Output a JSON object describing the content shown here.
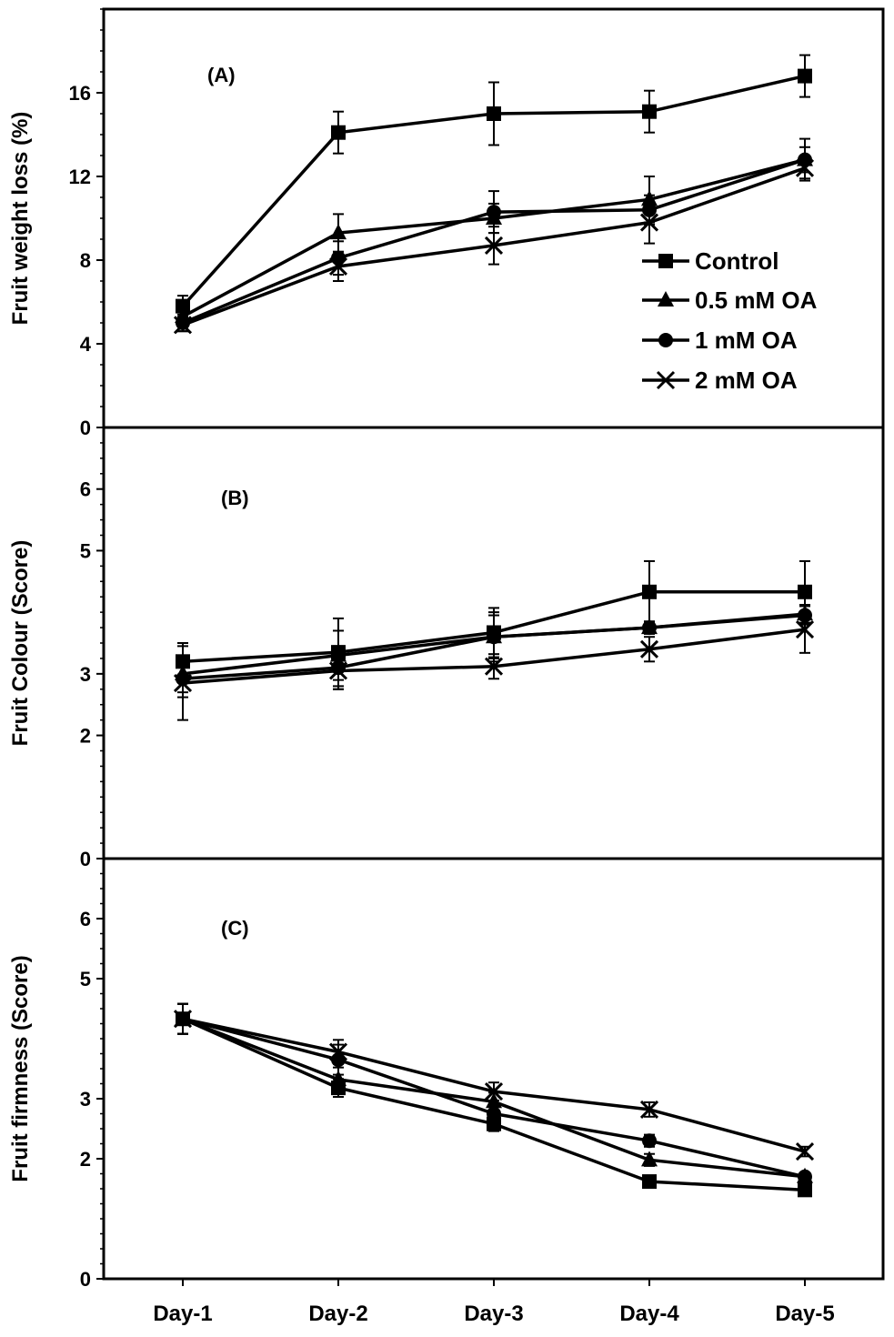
{
  "chart_data": [
    {
      "type": "line",
      "panel_label": "(A)",
      "ylabel": "Fruit weight loss (%)",
      "ylim": [
        0,
        20
      ],
      "yticks": [
        0,
        4,
        8,
        12,
        16
      ],
      "categories": [
        "Day-1",
        "Day-2",
        "Day-3",
        "Day-4",
        "Day-5"
      ],
      "legend_position": "right, middle",
      "series": [
        {
          "name": "Control",
          "marker": "square",
          "values": [
            5.8,
            14.1,
            15.0,
            15.1,
            16.8
          ],
          "errors": [
            0.5,
            1.0,
            1.5,
            1.0,
            1.0
          ]
        },
        {
          "name": "0.5 mM OA",
          "marker": "triangle",
          "values": [
            5.3,
            9.3,
            10.0,
            10.9,
            12.8
          ],
          "errors": [
            0.5,
            0.9,
            0.7,
            1.1,
            1.0
          ]
        },
        {
          "name": "1 mM OA",
          "marker": "circle",
          "values": [
            5.0,
            8.1,
            10.3,
            10.4,
            12.8
          ],
          "errors": [
            0.4,
            0.8,
            1.0,
            0.7,
            0.6
          ]
        },
        {
          "name": "2 mM OA",
          "marker": "x",
          "values": [
            4.9,
            7.7,
            8.7,
            9.8,
            12.4
          ],
          "errors": [
            0.3,
            0.7,
            0.9,
            1.0,
            0.5
          ]
        }
      ]
    },
    {
      "type": "line",
      "panel_label": "(B)",
      "ylabel": "Fruit Colour (Score)",
      "ylim": [
        0,
        7
      ],
      "yticks": [
        0,
        2,
        3,
        5,
        6
      ],
      "categories": [
        "Day-1",
        "Day-2",
        "Day-3",
        "Day-4",
        "Day-5"
      ],
      "series": [
        {
          "name": "Control",
          "marker": "square",
          "values": [
            3.2,
            3.35,
            3.67,
            4.33,
            4.33
          ],
          "errors": [
            0.3,
            0.55,
            0.4,
            0.5,
            0.5
          ]
        },
        {
          "name": "0.5 mM OA",
          "marker": "triangle",
          "values": [
            3.0,
            3.3,
            3.6,
            3.75,
            3.97
          ],
          "errors": [
            0.3,
            0.4,
            0.4,
            0.1,
            0.15
          ]
        },
        {
          "name": "1 mM OA",
          "marker": "circle",
          "values": [
            2.92,
            3.1,
            3.6,
            3.75,
            3.95
          ],
          "errors": [
            0.3,
            0.35,
            0.35,
            0.1,
            0.15
          ]
        },
        {
          "name": "2 mM OA",
          "marker": "x",
          "values": [
            2.85,
            3.05,
            3.12,
            3.4,
            3.72
          ],
          "errors": [
            0.6,
            0.3,
            0.2,
            0.2,
            0.38
          ]
        }
      ]
    },
    {
      "type": "line",
      "panel_label": "(C)",
      "ylabel": "Fruit firmness (Score)",
      "ylim": [
        0,
        7
      ],
      "yticks": [
        0,
        2,
        3,
        5,
        6
      ],
      "categories": [
        "Day-1",
        "Day-2",
        "Day-3",
        "Day-4",
        "Day-5"
      ],
      "series": [
        {
          "name": "Control",
          "marker": "square",
          "values": [
            4.33,
            3.18,
            2.58,
            1.62,
            1.48
          ],
          "errors": [
            0.25,
            0.15,
            0.12,
            0.05,
            0.05
          ]
        },
        {
          "name": "0.5 mM OA",
          "marker": "triangle",
          "values": [
            4.33,
            3.32,
            2.95,
            1.98,
            1.7
          ],
          "errors": [
            0.25,
            0.2,
            0.15,
            0.1,
            0.05
          ]
        },
        {
          "name": "1 mM OA",
          "marker": "circle",
          "values": [
            4.33,
            3.65,
            2.75,
            2.3,
            1.7
          ],
          "errors": [
            0.25,
            0.25,
            0.15,
            0.1,
            0.05
          ]
        },
        {
          "name": "2 mM OA",
          "marker": "x",
          "values": [
            4.33,
            3.78,
            3.12,
            2.82,
            2.12
          ],
          "errors": [
            0.25,
            0.2,
            0.15,
            0.12,
            0.08
          ]
        }
      ]
    }
  ]
}
